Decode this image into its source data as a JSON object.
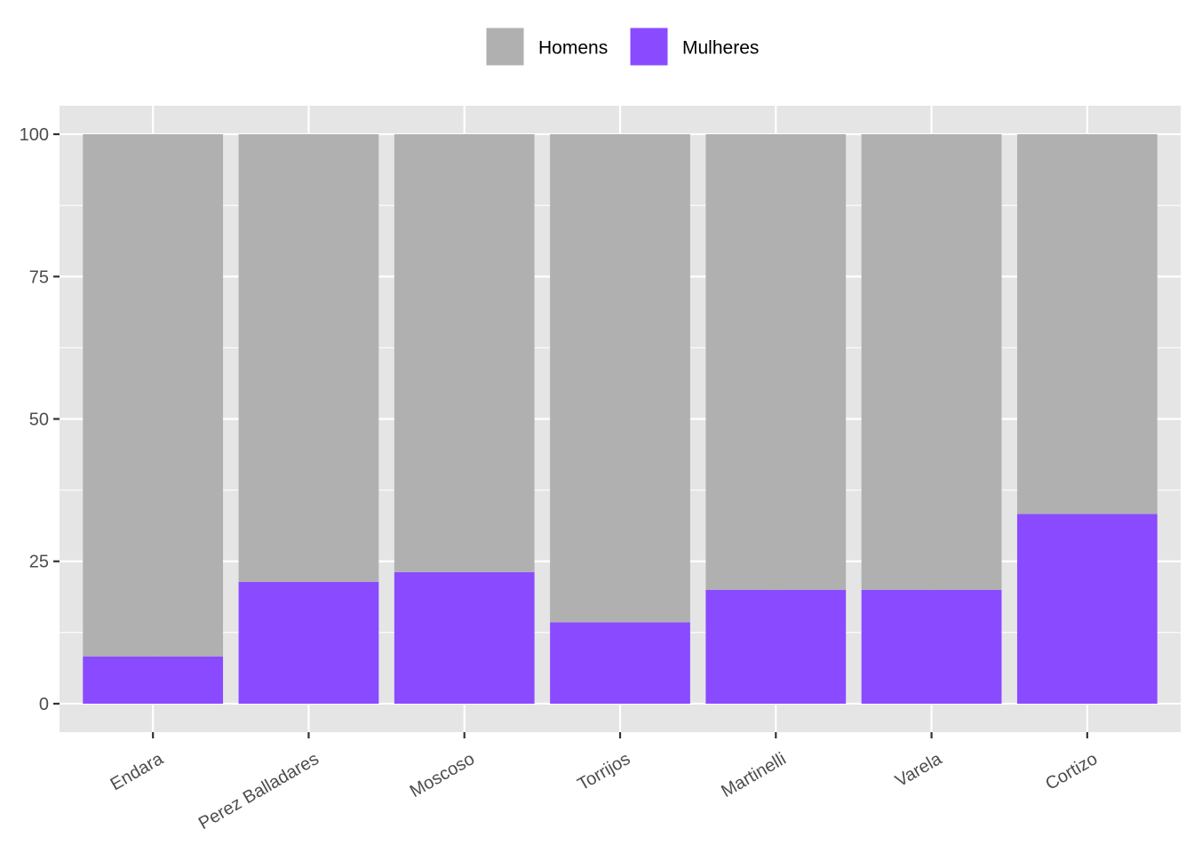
{
  "chart_data": {
    "type": "bar",
    "stacked": true,
    "categories": [
      "Endara",
      "Perez Balladares",
      "Moscoso",
      "Torrijos",
      "Martinelli",
      "Varela",
      "Cortizo"
    ],
    "series": [
      {
        "name": "Homens",
        "color": "#b0b0b0",
        "values": [
          91.7,
          78.6,
          76.9,
          85.7,
          80.0,
          80.0,
          66.7
        ]
      },
      {
        "name": "Mulheres",
        "color": "#8a4aff",
        "values": [
          8.3,
          21.4,
          23.1,
          14.3,
          20.0,
          20.0,
          33.3
        ]
      }
    ],
    "stack_order": [
      "Mulheres",
      "Homens"
    ],
    "ylim": [
      -5,
      105
    ],
    "yticks": [
      0,
      25,
      50,
      75,
      100
    ],
    "ytick_labels": [
      "0",
      "25",
      "50",
      "75",
      "100"
    ],
    "xlabel": "",
    "ylabel": "",
    "legend_position": "top",
    "grid": true,
    "panel_background": "#e5e5e5",
    "grid_color": "#ffffff"
  }
}
